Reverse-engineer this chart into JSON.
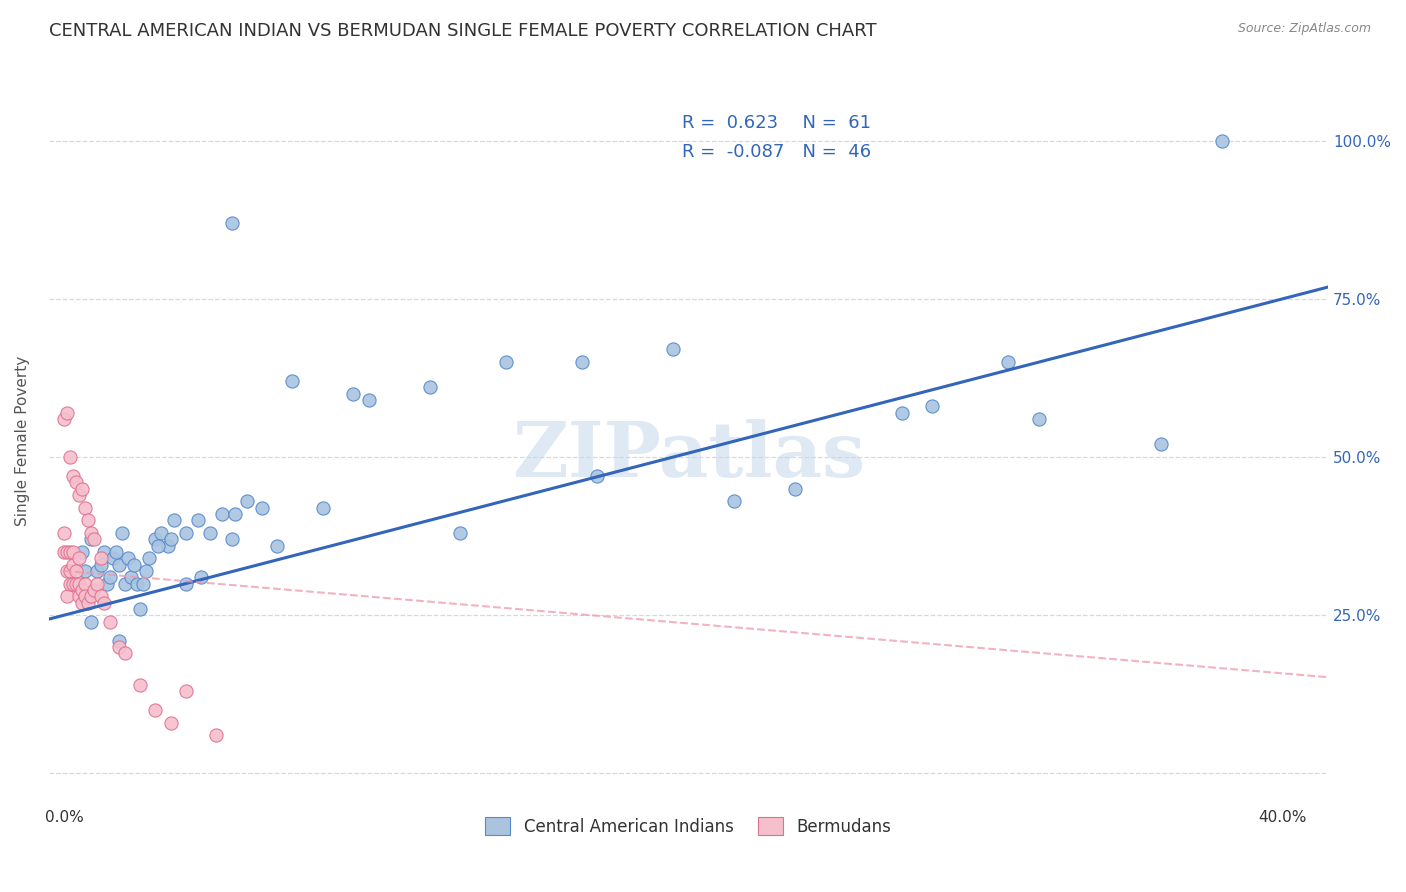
{
  "title": "CENTRAL AMERICAN INDIAN VS BERMUDAN SINGLE FEMALE POVERTY CORRELATION CHART",
  "source": "Source: ZipAtlas.com",
  "ylabel_label": "Single Female Poverty",
  "watermark": "ZIPatlas",
  "blue_R": 0.623,
  "blue_N": 61,
  "pink_R": -0.087,
  "pink_N": 46,
  "blue_color": "#aac4e0",
  "pink_color": "#f5bfcc",
  "blue_edge_color": "#5588cc",
  "pink_edge_color": "#e07090",
  "blue_trend_color": "#3366bb",
  "pink_trend_color": "#ee99aa",
  "blue_points_x": [
    0.003,
    0.006,
    0.007,
    0.009,
    0.011,
    0.013,
    0.014,
    0.016,
    0.018,
    0.02,
    0.022,
    0.024,
    0.026,
    0.028,
    0.03,
    0.032,
    0.034,
    0.036,
    0.04,
    0.044,
    0.048,
    0.052,
    0.056,
    0.06,
    0.065,
    0.008,
    0.012,
    0.015,
    0.017,
    0.019,
    0.021,
    0.023,
    0.027,
    0.031,
    0.035,
    0.045,
    0.055,
    0.07,
    0.085,
    0.1,
    0.12,
    0.145,
    0.17,
    0.2,
    0.24,
    0.285,
    0.32,
    0.36,
    0.009,
    0.018,
    0.025,
    0.04,
    0.055,
    0.075,
    0.095,
    0.13,
    0.175,
    0.22,
    0.275,
    0.31,
    0.38
  ],
  "blue_points_y": [
    0.3,
    0.35,
    0.32,
    0.37,
    0.32,
    0.35,
    0.3,
    0.34,
    0.33,
    0.3,
    0.31,
    0.3,
    0.3,
    0.34,
    0.37,
    0.38,
    0.36,
    0.4,
    0.38,
    0.4,
    0.38,
    0.41,
    0.41,
    0.43,
    0.42,
    0.28,
    0.33,
    0.31,
    0.35,
    0.38,
    0.34,
    0.33,
    0.32,
    0.36,
    0.37,
    0.31,
    0.37,
    0.36,
    0.42,
    0.59,
    0.61,
    0.65,
    0.65,
    0.67,
    0.45,
    0.58,
    0.56,
    0.52,
    0.24,
    0.21,
    0.26,
    0.3,
    0.87,
    0.62,
    0.6,
    0.38,
    0.47,
    0.43,
    0.57,
    0.65,
    1.0
  ],
  "pink_points_x": [
    0.0,
    0.0,
    0.001,
    0.001,
    0.001,
    0.002,
    0.002,
    0.002,
    0.003,
    0.003,
    0.003,
    0.004,
    0.004,
    0.005,
    0.005,
    0.005,
    0.006,
    0.006,
    0.007,
    0.007,
    0.008,
    0.009,
    0.01,
    0.011,
    0.012,
    0.013,
    0.0,
    0.001,
    0.002,
    0.003,
    0.004,
    0.005,
    0.006,
    0.007,
    0.008,
    0.009,
    0.01,
    0.012,
    0.015,
    0.018,
    0.02,
    0.025,
    0.03,
    0.035,
    0.04,
    0.05
  ],
  "pink_points_y": [
    0.35,
    0.38,
    0.32,
    0.35,
    0.28,
    0.32,
    0.3,
    0.35,
    0.33,
    0.3,
    0.35,
    0.32,
    0.3,
    0.34,
    0.3,
    0.28,
    0.29,
    0.27,
    0.3,
    0.28,
    0.27,
    0.28,
    0.29,
    0.3,
    0.28,
    0.27,
    0.56,
    0.57,
    0.5,
    0.47,
    0.46,
    0.44,
    0.45,
    0.42,
    0.4,
    0.38,
    0.37,
    0.34,
    0.24,
    0.2,
    0.19,
    0.14,
    0.1,
    0.08,
    0.13,
    0.06
  ],
  "xlim": [
    -0.005,
    0.415
  ],
  "ylim": [
    -0.05,
    1.1
  ],
  "background_color": "#ffffff",
  "grid_color": "#d8d8d8",
  "title_fontsize": 13,
  "axis_label_fontsize": 11,
  "tick_fontsize": 11,
  "marker_size": 90,
  "legend_text_color": "#333333",
  "legend_num_color": "#3366bb"
}
